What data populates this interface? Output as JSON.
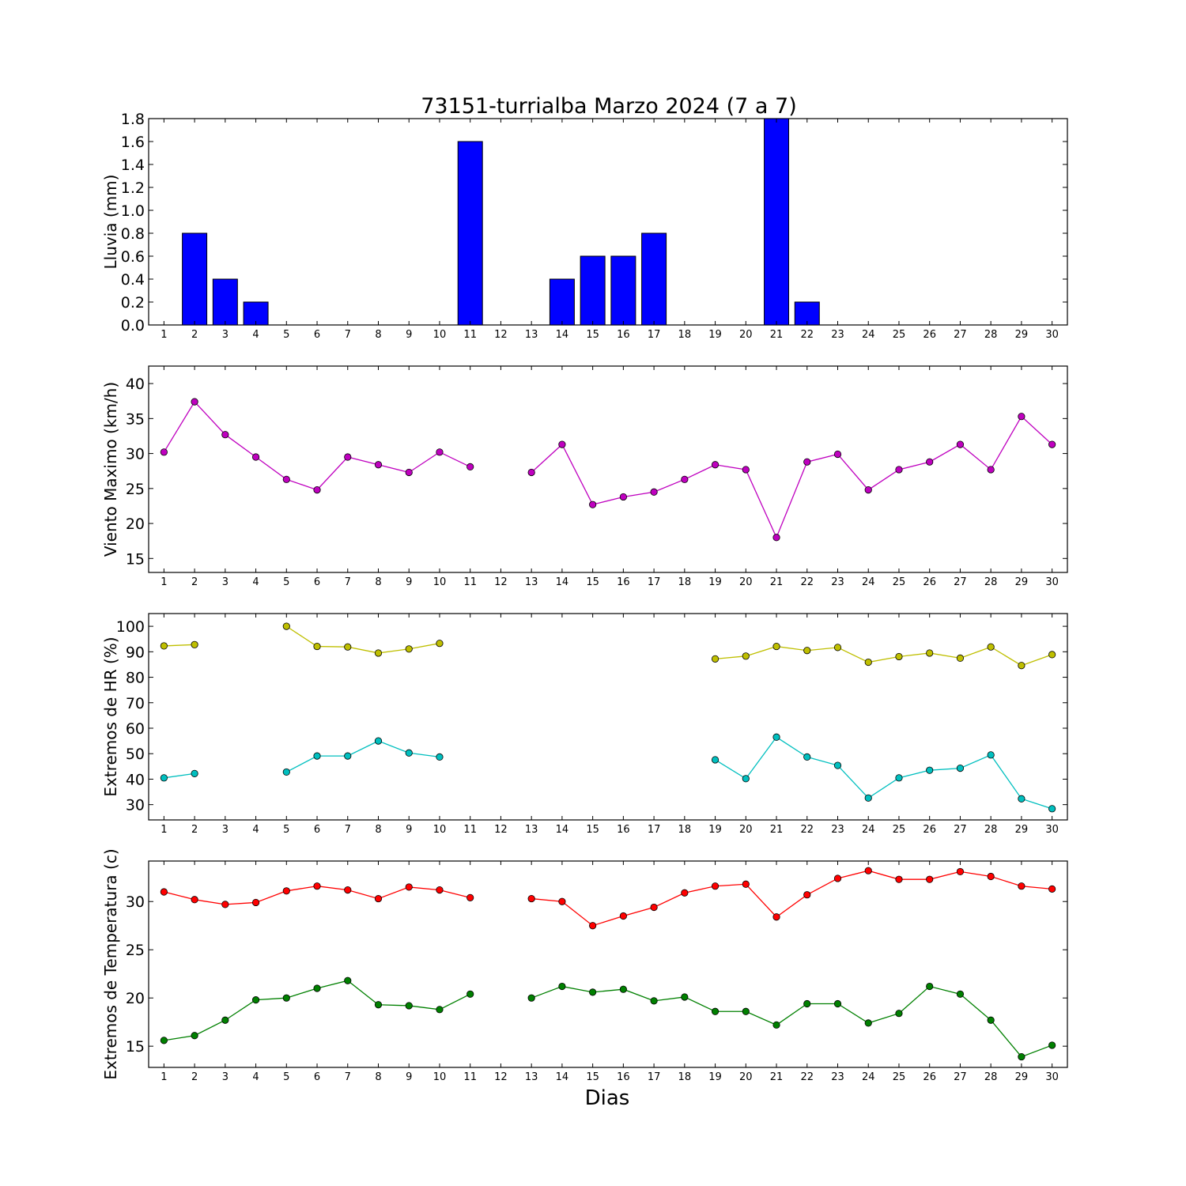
{
  "figure": {
    "title": "73151-turrialba Marzo 2024  (7 a 7)",
    "xlabel": "Dias"
  },
  "chart_data": [
    {
      "type": "bar",
      "ylabel": "Lluvia (mm)",
      "ylim": [
        0,
        1.8
      ],
      "yticks": [
        0.0,
        0.2,
        0.4,
        0.6,
        0.8,
        1.0,
        1.2,
        1.4,
        1.6,
        1.8
      ],
      "ytick_labels": [
        "0.0",
        "0.2",
        "0.4",
        "0.6",
        "0.8",
        "1.0",
        "1.2",
        "1.4",
        "1.6",
        "1.8"
      ],
      "categories": [
        1,
        2,
        3,
        4,
        5,
        6,
        7,
        8,
        9,
        10,
        11,
        12,
        13,
        14,
        15,
        16,
        17,
        18,
        19,
        20,
        21,
        22,
        23,
        24,
        25,
        26,
        27,
        28,
        29,
        30
      ],
      "series": [
        {
          "color": "#0000ff",
          "values": [
            0,
            0.8,
            0.4,
            0.2,
            0,
            0,
            0,
            0,
            0,
            0,
            1.6,
            0,
            0,
            0.4,
            0.6,
            0.6,
            0.8,
            0,
            0,
            0,
            1.8,
            0.2,
            0,
            0,
            0,
            0,
            0,
            0,
            0,
            0
          ]
        }
      ]
    },
    {
      "type": "line",
      "ylabel": "Viento Maximo (km/h)",
      "ylim": [
        13,
        42.5
      ],
      "yticks": [
        15,
        20,
        25,
        30,
        35,
        40
      ],
      "ytick_labels": [
        "15",
        "20",
        "25",
        "30",
        "35",
        "40"
      ],
      "x": [
        1,
        2,
        3,
        4,
        5,
        6,
        7,
        8,
        9,
        10,
        11,
        12,
        13,
        14,
        15,
        16,
        17,
        18,
        19,
        20,
        21,
        22,
        23,
        24,
        25,
        26,
        27,
        28,
        29,
        30
      ],
      "series": [
        {
          "color": "#bf00bf",
          "values": [
            30.2,
            37.4,
            32.7,
            29.5,
            26.3,
            24.8,
            29.5,
            28.4,
            27.3,
            30.2,
            28.1,
            null,
            27.3,
            31.3,
            22.7,
            23.8,
            24.5,
            26.3,
            28.4,
            27.7,
            18.0,
            28.8,
            29.9,
            24.8,
            27.7,
            28.8,
            31.3,
            27.7,
            35.3,
            31.3
          ]
        }
      ]
    },
    {
      "type": "line",
      "ylabel": "Extremos de HR (%)",
      "ylim": [
        24,
        105
      ],
      "yticks": [
        30,
        40,
        50,
        60,
        70,
        80,
        90,
        100
      ],
      "ytick_labels": [
        "30",
        "40",
        "50",
        "60",
        "70",
        "80",
        "90",
        "100"
      ],
      "x": [
        1,
        2,
        3,
        4,
        5,
        6,
        7,
        8,
        9,
        10,
        11,
        12,
        13,
        14,
        15,
        16,
        17,
        18,
        19,
        20,
        21,
        22,
        23,
        24,
        25,
        26,
        27,
        28,
        29,
        30
      ],
      "series": [
        {
          "color": "#bfbf00",
          "values": [
            92.3,
            92.8,
            null,
            null,
            100,
            92.1,
            91.9,
            89.5,
            91.1,
            93.3,
            null,
            null,
            null,
            null,
            null,
            null,
            null,
            null,
            87.2,
            88.3,
            92.1,
            90.5,
            91.7,
            85.9,
            88.1,
            89.5,
            87.5,
            91.9,
            84.6,
            88.9
          ]
        },
        {
          "color": "#00bfbf",
          "values": [
            40.5,
            42.2,
            null,
            null,
            42.8,
            49.1,
            49.1,
            55.0,
            50.3,
            48.7,
            null,
            null,
            null,
            null,
            null,
            null,
            null,
            null,
            47.6,
            40.2,
            56.5,
            48.7,
            45.4,
            32.6,
            40.5,
            43.5,
            44.3,
            49.5,
            32.3,
            28.4
          ]
        }
      ]
    },
    {
      "type": "line",
      "ylabel": "Extremos de Temperatura (c)",
      "ylim": [
        12.8,
        34.2
      ],
      "yticks": [
        15,
        20,
        25,
        30
      ],
      "ytick_labels": [
        "15",
        "20",
        "25",
        "30"
      ],
      "x": [
        1,
        2,
        3,
        4,
        5,
        6,
        7,
        8,
        9,
        10,
        11,
        12,
        13,
        14,
        15,
        16,
        17,
        18,
        19,
        20,
        21,
        22,
        23,
        24,
        25,
        26,
        27,
        28,
        29,
        30
      ],
      "series": [
        {
          "color": "#ff0000",
          "values": [
            31.0,
            30.2,
            29.7,
            29.9,
            31.1,
            31.6,
            31.2,
            30.3,
            31.5,
            31.2,
            30.4,
            null,
            30.3,
            30.0,
            27.5,
            28.5,
            29.4,
            30.9,
            31.6,
            31.8,
            28.4,
            30.7,
            32.4,
            33.2,
            32.3,
            32.3,
            33.1,
            32.6,
            31.6,
            31.3
          ]
        },
        {
          "color": "#008000",
          "values": [
            15.6,
            16.1,
            17.7,
            19.8,
            20.0,
            21.0,
            21.8,
            19.3,
            19.2,
            18.8,
            20.4,
            null,
            20.0,
            21.2,
            20.6,
            20.9,
            19.7,
            20.1,
            18.6,
            18.6,
            17.2,
            19.4,
            19.4,
            17.4,
            18.4,
            21.2,
            20.4,
            17.7,
            13.9,
            15.1
          ]
        }
      ]
    }
  ]
}
